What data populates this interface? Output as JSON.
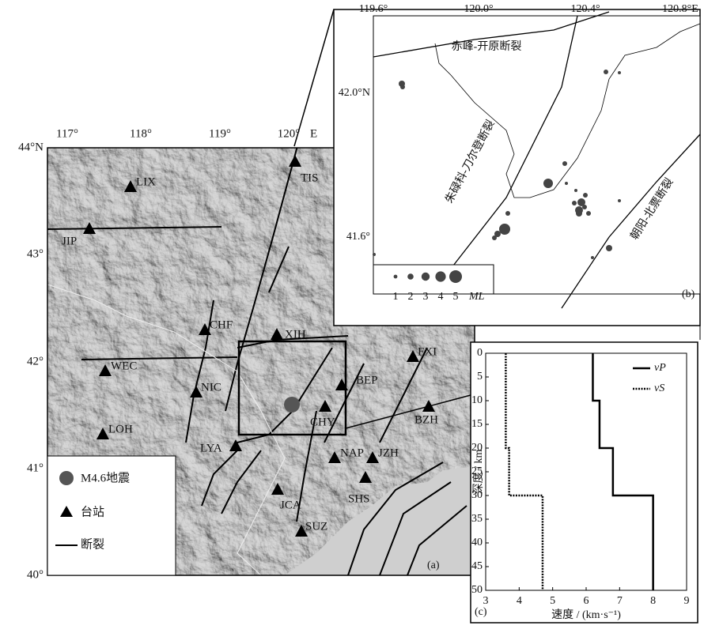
{
  "map": {
    "lon_labels": [
      "117°",
      "118°",
      "119°",
      "120°",
      "E"
    ],
    "lat_labels": [
      "44°N",
      "43°",
      "42°",
      "41°",
      "40°"
    ],
    "stations": [
      "TIS",
      "LIX",
      "JIP",
      "CHF",
      "XIH",
      "WEC",
      "NIC",
      "LOH",
      "LYA",
      "CHY",
      "BEP",
      "FXI",
      "BZH",
      "NAP",
      "JZH",
      "JCA",
      "SHS",
      "SUZ"
    ],
    "legend": {
      "earthquake": "M4.6地震",
      "station": "台站",
      "fault": "断裂"
    },
    "panel_label": "(a)"
  },
  "inset": {
    "lon_labels": [
      "119.6°",
      "120.0°",
      "120.4°",
      "120.8°E"
    ],
    "lat_labels": [
      "42.0°N",
      "41.6°"
    ],
    "faults": [
      "赤峰-开原断裂",
      "朱碌科-刀尔登断裂",
      "朝阳-北票断裂"
    ],
    "legend_sizes": [
      1,
      2,
      3,
      4,
      5
    ],
    "legend_unit": "ML",
    "panel_label": "(b)"
  },
  "chart_data": {
    "type": "line",
    "x_label": "速度 / (km·s⁻¹)",
    "y_label": "深度 / km",
    "xlim": [
      3,
      9
    ],
    "xticks": [
      3,
      4,
      5,
      6,
      7,
      8,
      9
    ],
    "ylim": [
      0,
      50
    ],
    "yticks": [
      0,
      5,
      10,
      15,
      20,
      25,
      30,
      35,
      40,
      45,
      50
    ],
    "y_inverted": true,
    "depth": [
      0,
      10,
      10,
      20,
      20,
      30,
      30,
      50
    ],
    "series": [
      {
        "name": "vP",
        "color": "#000000",
        "dash": "solid",
        "values": [
          6.2,
          6.2,
          6.4,
          6.4,
          6.8,
          6.8,
          8.0,
          8.0
        ]
      },
      {
        "name": "vS",
        "color": "#000000",
        "dash": "dotted",
        "values": [
          3.6,
          3.6,
          3.6,
          3.6,
          3.7,
          3.7,
          4.7,
          4.7
        ]
      }
    ],
    "panel_label": "(c)"
  }
}
